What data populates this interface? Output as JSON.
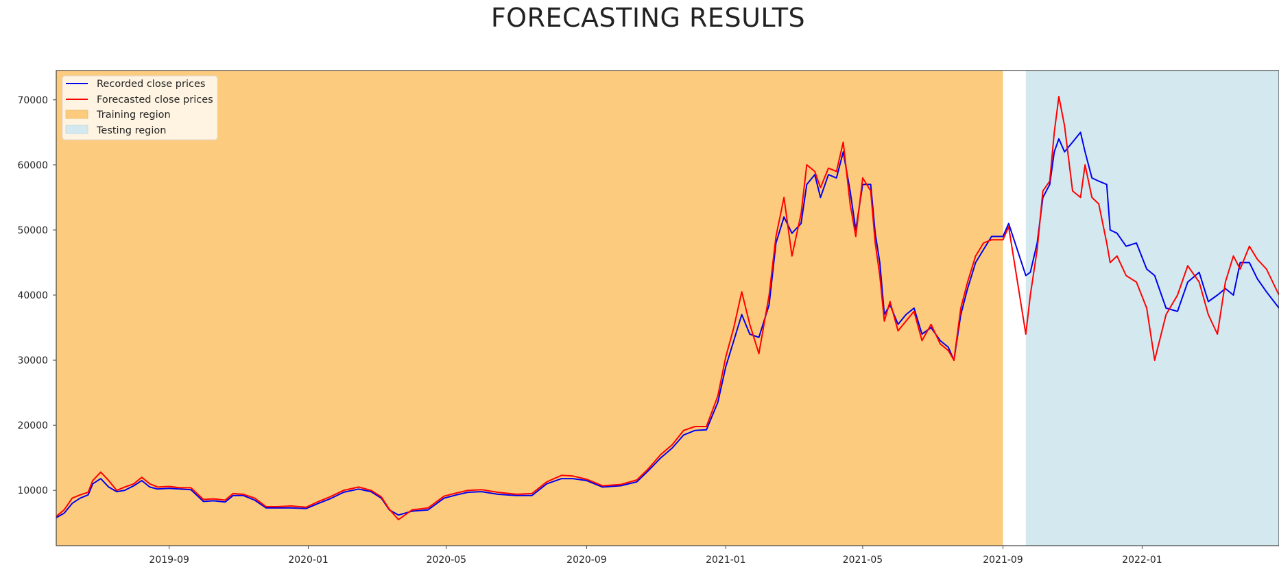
{
  "chart_data": {
    "type": "line",
    "title": "FORECASTING RESULTS",
    "xlabel": "",
    "ylabel": "",
    "xlim": [
      "2019-05-25",
      "2022-05-01"
    ],
    "ylim": [
      1500,
      74500
    ],
    "grid": false,
    "legend_position": "top-left",
    "x_ticks": [
      "2019-09",
      "2020-01",
      "2020-05",
      "2020-09",
      "2021-01",
      "2021-05",
      "2021-09",
      "2022-01"
    ],
    "y_ticks": [
      10000,
      20000,
      30000,
      40000,
      50000,
      60000,
      70000
    ],
    "regions": [
      {
        "name": "Training region",
        "start": "2019-05-25",
        "end": "2021-09-01",
        "color": "#FDCB7E"
      },
      {
        "name": "Testing region",
        "start": "2021-09-21",
        "end": "2022-05-01",
        "color": "#D4E9EF"
      }
    ],
    "series": [
      {
        "name": "Recorded close prices",
        "color": "#0000EE",
        "x": [
          "2019-05-25",
          "2019-06-01",
          "2019-06-08",
          "2019-06-15",
          "2019-06-22",
          "2019-06-26",
          "2019-07-03",
          "2019-07-10",
          "2019-07-17",
          "2019-07-24",
          "2019-08-01",
          "2019-08-08",
          "2019-08-15",
          "2019-08-22",
          "2019-09-01",
          "2019-09-10",
          "2019-09-20",
          "2019-10-01",
          "2019-10-10",
          "2019-10-20",
          "2019-10-27",
          "2019-11-05",
          "2019-11-15",
          "2019-11-25",
          "2019-12-05",
          "2019-12-17",
          "2019-12-30",
          "2020-01-10",
          "2020-01-20",
          "2020-02-01",
          "2020-02-14",
          "2020-02-25",
          "2020-03-05",
          "2020-03-12",
          "2020-03-20",
          "2020-04-01",
          "2020-04-15",
          "2020-04-29",
          "2020-05-10",
          "2020-05-20",
          "2020-06-01",
          "2020-06-15",
          "2020-07-01",
          "2020-07-15",
          "2020-07-28",
          "2020-08-10",
          "2020-08-20",
          "2020-09-01",
          "2020-09-15",
          "2020-10-01",
          "2020-10-15",
          "2020-10-25",
          "2020-11-05",
          "2020-11-15",
          "2020-11-25",
          "2020-12-05",
          "2020-12-15",
          "2020-12-25",
          "2021-01-01",
          "2021-01-08",
          "2021-01-15",
          "2021-01-22",
          "2021-01-30",
          "2021-02-08",
          "2021-02-14",
          "2021-02-21",
          "2021-02-28",
          "2021-03-08",
          "2021-03-13",
          "2021-03-20",
          "2021-03-25",
          "2021-04-01",
          "2021-04-08",
          "2021-04-14",
          "2021-04-20",
          "2021-04-25",
          "2021-05-01",
          "2021-05-08",
          "2021-05-12",
          "2021-05-16",
          "2021-05-20",
          "2021-05-25",
          "2021-06-01",
          "2021-06-08",
          "2021-06-15",
          "2021-06-22",
          "2021-06-30",
          "2021-07-08",
          "2021-07-15",
          "2021-07-20",
          "2021-07-26",
          "2021-08-01",
          "2021-08-08",
          "2021-08-15",
          "2021-08-22",
          "2021-09-01",
          "2021-09-06",
          "2021-09-21",
          "2021-09-25",
          "2021-10-01",
          "2021-10-06",
          "2021-10-12",
          "2021-10-16",
          "2021-10-20",
          "2021-10-25",
          "2021-11-01",
          "2021-11-08",
          "2021-11-12",
          "2021-11-18",
          "2021-11-24",
          "2021-12-01",
          "2021-12-04",
          "2021-12-10",
          "2021-12-18",
          "2021-12-27",
          "2022-01-05",
          "2022-01-12",
          "2022-01-22",
          "2022-02-01",
          "2022-02-10",
          "2022-02-20",
          "2022-02-28",
          "2022-03-08",
          "2022-03-15",
          "2022-03-22",
          "2022-03-28",
          "2022-04-05",
          "2022-04-12",
          "2022-04-20",
          "2022-05-01"
        ],
        "values": [
          5800,
          6500,
          8000,
          8800,
          9300,
          11000,
          11800,
          10500,
          9800,
          10000,
          10700,
          11500,
          10500,
          10200,
          10300,
          10200,
          10100,
          8300,
          8400,
          8200,
          9200,
          9200,
          8500,
          7300,
          7300,
          7300,
          7200,
          8000,
          8700,
          9700,
          10200,
          9800,
          8800,
          7000,
          6200,
          6800,
          7000,
          8800,
          9300,
          9700,
          9800,
          9400,
          9200,
          9200,
          11000,
          11800,
          11800,
          11500,
          10500,
          10700,
          11300,
          13000,
          15000,
          16500,
          18500,
          19200,
          19300,
          23500,
          29000,
          33000,
          37000,
          34000,
          33500,
          38500,
          48000,
          52000,
          49500,
          51000,
          57000,
          58500,
          55000,
          58500,
          58000,
          62000,
          56000,
          50000,
          57000,
          57000,
          49500,
          45000,
          37000,
          38500,
          35500,
          37000,
          38000,
          34000,
          35000,
          33000,
          32000,
          30000,
          37000,
          41000,
          45000,
          47000,
          49000,
          49000,
          51000,
          43000,
          43500,
          48000,
          55000,
          57000,
          62000,
          64000,
          62000,
          63500,
          65000,
          62000,
          58000,
          57500,
          57000,
          50000,
          49500,
          47500,
          48000,
          44000,
          43000,
          38000,
          37500,
          42000,
          43500,
          39000,
          40000,
          41000,
          40000,
          45000,
          45000,
          42500,
          40500,
          38000
        ]
      },
      {
        "name": "Forecasted close prices",
        "color": "#FF0000",
        "x": [
          "2019-05-25",
          "2019-06-01",
          "2019-06-08",
          "2019-06-15",
          "2019-06-22",
          "2019-06-26",
          "2019-07-03",
          "2019-07-10",
          "2019-07-17",
          "2019-07-24",
          "2019-08-01",
          "2019-08-08",
          "2019-08-15",
          "2019-08-22",
          "2019-09-01",
          "2019-09-10",
          "2019-09-20",
          "2019-10-01",
          "2019-10-10",
          "2019-10-20",
          "2019-10-27",
          "2019-11-05",
          "2019-11-15",
          "2019-11-25",
          "2019-12-05",
          "2019-12-17",
          "2019-12-30",
          "2020-01-10",
          "2020-01-20",
          "2020-02-01",
          "2020-02-14",
          "2020-02-25",
          "2020-03-05",
          "2020-03-12",
          "2020-03-20",
          "2020-04-01",
          "2020-04-15",
          "2020-04-29",
          "2020-05-10",
          "2020-05-20",
          "2020-06-01",
          "2020-06-15",
          "2020-07-01",
          "2020-07-15",
          "2020-07-28",
          "2020-08-10",
          "2020-08-20",
          "2020-09-01",
          "2020-09-15",
          "2020-10-01",
          "2020-10-15",
          "2020-10-25",
          "2020-11-05",
          "2020-11-15",
          "2020-11-25",
          "2020-12-05",
          "2020-12-15",
          "2020-12-25",
          "2021-01-01",
          "2021-01-08",
          "2021-01-15",
          "2021-01-22",
          "2021-01-30",
          "2021-02-08",
          "2021-02-14",
          "2021-02-21",
          "2021-02-28",
          "2021-03-08",
          "2021-03-13",
          "2021-03-20",
          "2021-03-25",
          "2021-04-01",
          "2021-04-08",
          "2021-04-14",
          "2021-04-20",
          "2021-04-25",
          "2021-05-01",
          "2021-05-08",
          "2021-05-12",
          "2021-05-16",
          "2021-05-20",
          "2021-05-25",
          "2021-06-01",
          "2021-06-08",
          "2021-06-15",
          "2021-06-22",
          "2021-06-30",
          "2021-07-08",
          "2021-07-15",
          "2021-07-20",
          "2021-07-26",
          "2021-08-01",
          "2021-08-08",
          "2021-08-15",
          "2021-08-22",
          "2021-09-01",
          "2021-09-06",
          "2021-09-21",
          "2021-09-25",
          "2021-10-01",
          "2021-10-06",
          "2021-10-12",
          "2021-10-16",
          "2021-10-20",
          "2021-10-25",
          "2021-11-01",
          "2021-11-08",
          "2021-11-12",
          "2021-11-18",
          "2021-11-24",
          "2021-12-01",
          "2021-12-04",
          "2021-12-10",
          "2021-12-18",
          "2021-12-27",
          "2022-01-05",
          "2022-01-12",
          "2022-01-22",
          "2022-02-01",
          "2022-02-10",
          "2022-02-20",
          "2022-02-28",
          "2022-03-08",
          "2022-03-15",
          "2022-03-22",
          "2022-03-28",
          "2022-04-05",
          "2022-04-12",
          "2022-04-20",
          "2022-05-01"
        ],
        "values": [
          6000,
          7000,
          8800,
          9300,
          9700,
          11500,
          12800,
          11500,
          10000,
          10500,
          11000,
          12000,
          11000,
          10500,
          10600,
          10400,
          10400,
          8600,
          8700,
          8500,
          9500,
          9400,
          8800,
          7500,
          7500,
          7600,
          7400,
          8300,
          9000,
          10000,
          10500,
          10000,
          9000,
          7100,
          5500,
          7000,
          7300,
          9100,
          9600,
          10000,
          10100,
          9700,
          9400,
          9500,
          11300,
          12300,
          12200,
          11700,
          10700,
          10900,
          11600,
          13300,
          15500,
          17000,
          19200,
          19800,
          19800,
          24500,
          30500,
          35000,
          40500,
          35500,
          31000,
          40000,
          49000,
          55000,
          46000,
          52500,
          60000,
          59000,
          56500,
          59500,
          59000,
          63500,
          54000,
          49000,
          58000,
          56000,
          48000,
          43000,
          36000,
          39000,
          34500,
          36000,
          37500,
          33000,
          35500,
          32500,
          31500,
          30000,
          38000,
          42000,
          46000,
          48000,
          48500,
          48500,
          50500,
          34000,
          40000,
          47000,
          56000,
          57500,
          65000,
          70500,
          66000,
          56000,
          55000,
          60000,
          55000,
          54000,
          48000,
          45000,
          46000,
          43000,
          42000,
          38000,
          30000,
          37000,
          40000,
          44500,
          42000,
          37000,
          34000,
          42000,
          46000,
          44000,
          47500,
          45500,
          44000,
          40000
        ]
      }
    ]
  }
}
